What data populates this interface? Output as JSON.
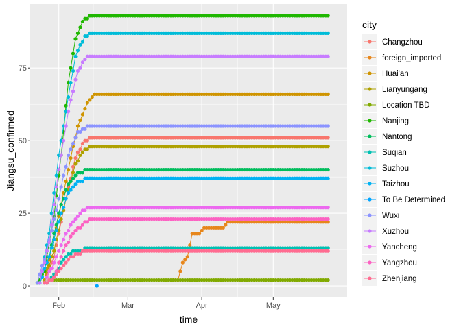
{
  "chart_data": {
    "type": "line",
    "xlabel": "time",
    "ylabel": "Jiangsu_confirmed",
    "x_tick_labels": [
      "Feb",
      "Mar",
      "Apr",
      "May"
    ],
    "x_tick_dates": [
      "2020-02-01",
      "2020-03-01",
      "2020-04-01",
      "2020-05-01"
    ],
    "xlim": [
      "2020-01-20",
      "2020-06-01"
    ],
    "y_ticks": [
      0,
      25,
      50,
      75
    ],
    "ylim": [
      -4,
      97
    ],
    "grid": true,
    "legend": {
      "title": "city",
      "position": "right"
    },
    "series": [
      {
        "name": "Changzhou",
        "color": "#F8766D",
        "points": [
          [
            "2020-01-26",
            2
          ],
          [
            "2020-01-30",
            10
          ],
          [
            "2020-02-04",
            30
          ],
          [
            "2020-02-08",
            44
          ],
          [
            "2020-02-12",
            50
          ],
          [
            "2020-02-16",
            51
          ],
          [
            "2020-05-24",
            51
          ]
        ]
      },
      {
        "name": "foreign_imported",
        "color": "#E7861B",
        "points": [
          [
            "2020-03-20",
            2
          ],
          [
            "2020-03-22",
            2
          ],
          [
            "2020-03-24",
            8
          ],
          [
            "2020-03-26",
            10
          ],
          [
            "2020-03-28",
            18
          ],
          [
            "2020-03-31",
            18
          ],
          [
            "2020-04-02",
            20
          ],
          [
            "2020-04-10",
            20
          ],
          [
            "2020-04-12",
            22
          ],
          [
            "2020-05-24",
            22
          ]
        ]
      },
      {
        "name": "Huai'an",
        "color": "#CF9400",
        "points": [
          [
            "2020-01-26",
            2
          ],
          [
            "2020-01-31",
            20
          ],
          [
            "2020-02-05",
            40
          ],
          [
            "2020-02-09",
            55
          ],
          [
            "2020-02-13",
            63
          ],
          [
            "2020-02-16",
            66
          ],
          [
            "2020-05-24",
            66
          ]
        ]
      },
      {
        "name": "Lianyungang",
        "color": "#AFA100",
        "points": [
          [
            "2020-01-26",
            2
          ],
          [
            "2020-01-30",
            12
          ],
          [
            "2020-02-04",
            30
          ],
          [
            "2020-02-08",
            42
          ],
          [
            "2020-02-12",
            47
          ],
          [
            "2020-02-15",
            48
          ],
          [
            "2020-05-24",
            48
          ]
        ]
      },
      {
        "name": "Location TBD",
        "color": "#81AA00",
        "points": [
          [
            "2020-01-27",
            1
          ],
          [
            "2020-01-29",
            2
          ],
          [
            "2020-05-24",
            2
          ]
        ]
      },
      {
        "name": "Nanjing",
        "color": "#1FB700",
        "points": [
          [
            "2020-01-23",
            1
          ],
          [
            "2020-01-26",
            5
          ],
          [
            "2020-01-30",
            24
          ],
          [
            "2020-02-02",
            45
          ],
          [
            "2020-02-05",
            70
          ],
          [
            "2020-02-08",
            85
          ],
          [
            "2020-02-11",
            91
          ],
          [
            "2020-02-14",
            93
          ],
          [
            "2020-05-24",
            93
          ]
        ]
      },
      {
        "name": "Nantong",
        "color": "#00BD5C",
        "points": [
          [
            "2020-01-24",
            1
          ],
          [
            "2020-01-28",
            10
          ],
          [
            "2020-02-01",
            25
          ],
          [
            "2020-02-05",
            35
          ],
          [
            "2020-02-09",
            39
          ],
          [
            "2020-02-14",
            40
          ],
          [
            "2020-05-24",
            40
          ]
        ]
      },
      {
        "name": "Suqian",
        "color": "#00C0B2",
        "points": [
          [
            "2020-01-27",
            1
          ],
          [
            "2020-01-31",
            5
          ],
          [
            "2020-02-04",
            10
          ],
          [
            "2020-02-08",
            12
          ],
          [
            "2020-02-15",
            13
          ],
          [
            "2020-05-24",
            13
          ]
        ]
      },
      {
        "name": "Suzhou",
        "color": "#00BCD8",
        "points": [
          [
            "2020-01-24",
            1
          ],
          [
            "2020-01-28",
            18
          ],
          [
            "2020-02-01",
            45
          ],
          [
            "2020-02-05",
            65
          ],
          [
            "2020-02-08",
            79
          ],
          [
            "2020-02-12",
            86
          ],
          [
            "2020-02-15",
            87
          ],
          [
            "2020-05-24",
            87
          ]
        ]
      },
      {
        "name": "Taizhou",
        "color": "#00B2F3",
        "points": [
          [
            "2020-01-24",
            1
          ],
          [
            "2020-01-28",
            10
          ],
          [
            "2020-02-01",
            22
          ],
          [
            "2020-02-05",
            32
          ],
          [
            "2020-02-09",
            36
          ],
          [
            "2020-02-14",
            37
          ],
          [
            "2020-05-24",
            37
          ]
        ]
      },
      {
        "name": "To Be Determined",
        "color": "#00A5FF",
        "points": [
          [
            "2020-02-17",
            0
          ]
        ]
      },
      {
        "name": "Wuxi",
        "color": "#8B93FF",
        "points": [
          [
            "2020-01-23",
            1
          ],
          [
            "2020-01-27",
            12
          ],
          [
            "2020-02-01",
            30
          ],
          [
            "2020-02-05",
            45
          ],
          [
            "2020-02-09",
            53
          ],
          [
            "2020-02-14",
            55
          ],
          [
            "2020-05-24",
            55
          ]
        ]
      },
      {
        "name": "Xuzhou",
        "color": "#C77CFF",
        "points": [
          [
            "2020-01-24",
            1
          ],
          [
            "2020-01-28",
            15
          ],
          [
            "2020-02-01",
            40
          ],
          [
            "2020-02-05",
            60
          ],
          [
            "2020-02-09",
            74
          ],
          [
            "2020-02-13",
            79
          ],
          [
            "2020-05-24",
            79
          ]
        ]
      },
      {
        "name": "Yancheng",
        "color": "#EC69EF",
        "points": [
          [
            "2020-01-26",
            1
          ],
          [
            "2020-01-30",
            8
          ],
          [
            "2020-02-03",
            16
          ],
          [
            "2020-02-07",
            22
          ],
          [
            "2020-02-11",
            26
          ],
          [
            "2020-02-14",
            27
          ],
          [
            "2020-05-24",
            27
          ]
        ]
      },
      {
        "name": "Yangzhou",
        "color": "#FC61C2",
        "points": [
          [
            "2020-01-27",
            1
          ],
          [
            "2020-01-30",
            3
          ],
          [
            "2020-02-03",
            12
          ],
          [
            "2020-02-07",
            18
          ],
          [
            "2020-02-11",
            21
          ],
          [
            "2020-02-15",
            23
          ],
          [
            "2020-05-24",
            23
          ]
        ]
      },
      {
        "name": "Zhenjiang",
        "color": "#FF6C91",
        "points": [
          [
            "2020-01-26",
            1
          ],
          [
            "2020-01-29",
            2
          ],
          [
            "2020-02-02",
            6
          ],
          [
            "2020-02-05",
            9
          ],
          [
            "2020-02-09",
            11
          ],
          [
            "2020-02-13",
            12
          ],
          [
            "2020-05-24",
            12
          ]
        ]
      }
    ]
  }
}
